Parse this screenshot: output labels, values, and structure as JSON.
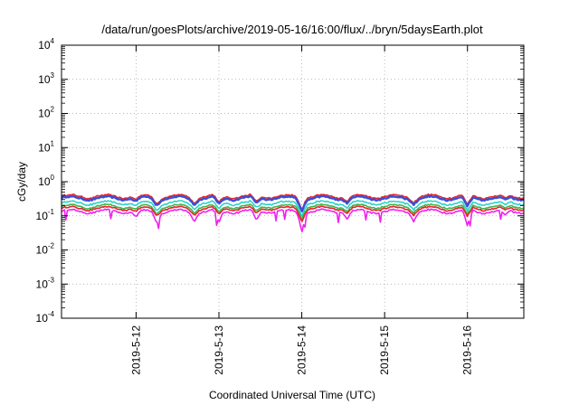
{
  "chart_data": {
    "type": "line",
    "title": "/data/run/goesPlots/archive/2019-05-16/16:00/flux/../bryn/5daysEarth.plot",
    "xlabel": "Coordinated Universal Time (UTC)",
    "ylabel": "cGy/day",
    "y_scale": "log",
    "ylim_exponents": [
      -4,
      4
    ],
    "y_tick_exponents": [
      -4,
      -3,
      -2,
      -1,
      0,
      1,
      2,
      3,
      4
    ],
    "xlim_days": [
      0.0,
      5.58
    ],
    "x_ticks": [
      {
        "label": "2019-5-12",
        "day": 0.9
      },
      {
        "label": "2019-5-13",
        "day": 1.9
      },
      {
        "label": "2019-5-14",
        "day": 2.9
      },
      {
        "label": "2019-5-15",
        "day": 3.9
      },
      {
        "label": "2019-5-16",
        "day": 4.9
      }
    ],
    "grid": true,
    "series": [
      {
        "color": "#e8242a",
        "base": 0.37
      },
      {
        "color": "#3a4fd8",
        "base": 0.33
      },
      {
        "color": "#2ad3c8",
        "base": 0.24
      },
      {
        "color": "#3fb54a",
        "base": 0.19
      },
      {
        "color": "#e8242a",
        "base": 0.165
      },
      {
        "color": "#f020f0",
        "base": 0.135
      }
    ],
    "dips": [
      {
        "day": 0.9,
        "depth": 0.4
      },
      {
        "day": 1.15,
        "depth": 0.6
      },
      {
        "day": 1.6,
        "depth": 0.55
      },
      {
        "day": 1.9,
        "depth": 0.75
      },
      {
        "day": 2.35,
        "depth": 0.6
      },
      {
        "day": 2.9,
        "depth": 1.0
      },
      {
        "day": 3.45,
        "depth": 0.45
      },
      {
        "day": 4.25,
        "depth": 0.5
      },
      {
        "day": 4.9,
        "depth": 0.9
      },
      {
        "day": 5.35,
        "depth": 0.35
      }
    ]
  }
}
